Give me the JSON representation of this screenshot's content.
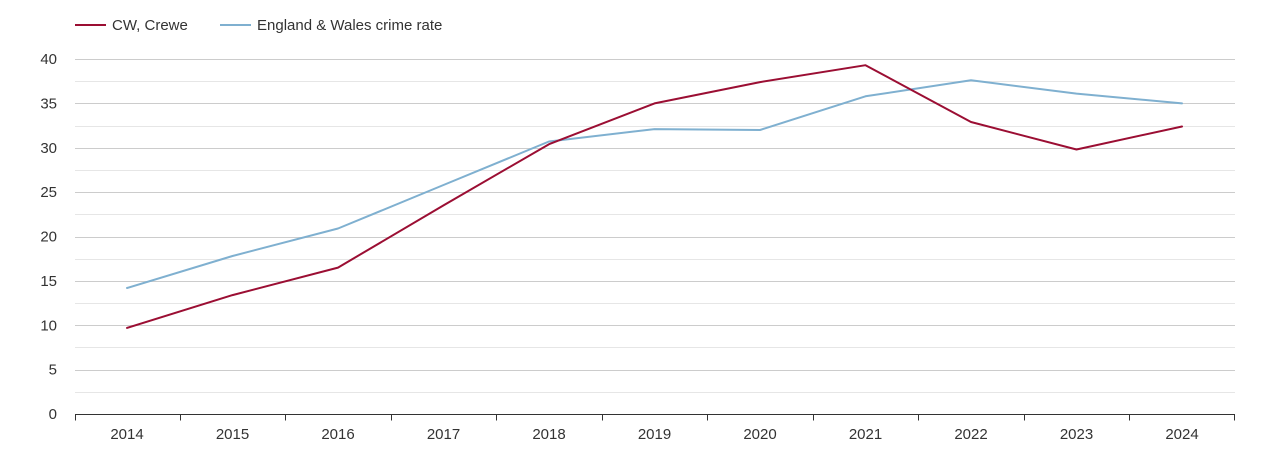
{
  "legend": {
    "items": [
      {
        "label": "CW, Crewe",
        "color": "#9b0e33"
      },
      {
        "label": "England & Wales crime rate",
        "color": "#7fb0d0"
      }
    ]
  },
  "chart_data": {
    "type": "line",
    "title": "",
    "xlabel": "",
    "ylabel": "",
    "x": [
      "2014",
      "2015",
      "2016",
      "2017",
      "2018",
      "2019",
      "2020",
      "2021",
      "2022",
      "2023",
      "2024"
    ],
    "ylim": [
      0,
      40
    ],
    "yticks": [
      0,
      5,
      10,
      15,
      20,
      25,
      30,
      35,
      40
    ],
    "grid": true,
    "legend_position": "top-left",
    "series": [
      {
        "name": "CW, Crewe",
        "color": "#9b0e33",
        "values": [
          9.7,
          13.4,
          16.5,
          23.5,
          30.4,
          35.0,
          37.4,
          39.3,
          32.9,
          29.8,
          32.4
        ]
      },
      {
        "name": "England & Wales crime rate",
        "color": "#7fb0d0",
        "values": [
          14.2,
          17.8,
          20.9,
          25.8,
          30.7,
          32.1,
          32.0,
          35.8,
          37.6,
          36.1,
          35.0
        ]
      }
    ]
  }
}
